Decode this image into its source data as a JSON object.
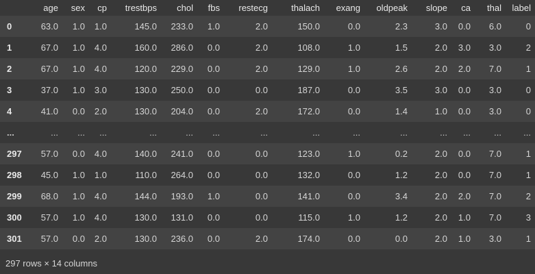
{
  "columns": [
    "",
    "age",
    "sex",
    "cp",
    "trestbps",
    "chol",
    "fbs",
    "restecg",
    "thalach",
    "exang",
    "oldpeak",
    "slope",
    "ca",
    "thal",
    "label"
  ],
  "rows": [
    {
      "idx": "0",
      "cells": [
        "63.0",
        "1.0",
        "1.0",
        "145.0",
        "233.0",
        "1.0",
        "2.0",
        "150.0",
        "0.0",
        "2.3",
        "3.0",
        "0.0",
        "6.0",
        "0"
      ]
    },
    {
      "idx": "1",
      "cells": [
        "67.0",
        "1.0",
        "4.0",
        "160.0",
        "286.0",
        "0.0",
        "2.0",
        "108.0",
        "1.0",
        "1.5",
        "2.0",
        "3.0",
        "3.0",
        "2"
      ]
    },
    {
      "idx": "2",
      "cells": [
        "67.0",
        "1.0",
        "4.0",
        "120.0",
        "229.0",
        "0.0",
        "2.0",
        "129.0",
        "1.0",
        "2.6",
        "2.0",
        "2.0",
        "7.0",
        "1"
      ]
    },
    {
      "idx": "3",
      "cells": [
        "37.0",
        "1.0",
        "3.0",
        "130.0",
        "250.0",
        "0.0",
        "0.0",
        "187.0",
        "0.0",
        "3.5",
        "3.0",
        "0.0",
        "3.0",
        "0"
      ]
    },
    {
      "idx": "4",
      "cells": [
        "41.0",
        "0.0",
        "2.0",
        "130.0",
        "204.0",
        "0.0",
        "2.0",
        "172.0",
        "0.0",
        "1.4",
        "1.0",
        "0.0",
        "3.0",
        "0"
      ]
    },
    {
      "idx": "...",
      "cells": [
        "...",
        "...",
        "...",
        "...",
        "...",
        "...",
        "...",
        "...",
        "...",
        "...",
        "...",
        "...",
        "...",
        "..."
      ]
    },
    {
      "idx": "297",
      "cells": [
        "57.0",
        "0.0",
        "4.0",
        "140.0",
        "241.0",
        "0.0",
        "0.0",
        "123.0",
        "1.0",
        "0.2",
        "2.0",
        "0.0",
        "7.0",
        "1"
      ]
    },
    {
      "idx": "298",
      "cells": [
        "45.0",
        "1.0",
        "1.0",
        "110.0",
        "264.0",
        "0.0",
        "0.0",
        "132.0",
        "0.0",
        "1.2",
        "2.0",
        "0.0",
        "7.0",
        "1"
      ]
    },
    {
      "idx": "299",
      "cells": [
        "68.0",
        "1.0",
        "4.0",
        "144.0",
        "193.0",
        "1.0",
        "0.0",
        "141.0",
        "0.0",
        "3.4",
        "2.0",
        "2.0",
        "7.0",
        "2"
      ]
    },
    {
      "idx": "300",
      "cells": [
        "57.0",
        "1.0",
        "4.0",
        "130.0",
        "131.0",
        "0.0",
        "0.0",
        "115.0",
        "1.0",
        "1.2",
        "2.0",
        "1.0",
        "7.0",
        "3"
      ]
    },
    {
      "idx": "301",
      "cells": [
        "57.0",
        "0.0",
        "2.0",
        "130.0",
        "236.0",
        "0.0",
        "2.0",
        "174.0",
        "0.0",
        "0.0",
        "2.0",
        "1.0",
        "3.0",
        "1"
      ]
    }
  ],
  "footer": "297 rows × 14 columns"
}
